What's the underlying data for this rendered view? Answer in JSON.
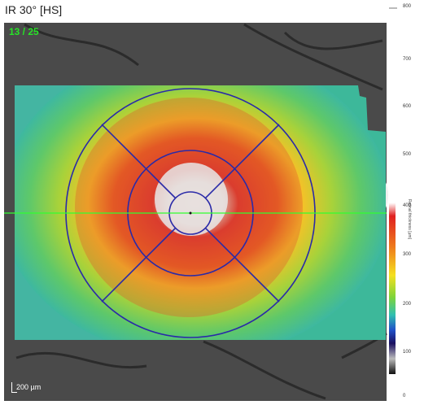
{
  "header": {
    "scan_title": "IR 30° [HS]",
    "frame_counter": "13 / 25"
  },
  "scale_bar": {
    "label": "200 µm"
  },
  "colorbar": {
    "ticks": [
      "800",
      "700",
      "600",
      "500",
      "400",
      "300",
      "200",
      "100",
      "0"
    ],
    "unit_label": "Retinal thickness [µm]",
    "colors": [
      "#f5f5f5",
      "#d8d8d8",
      "#e02020",
      "#ee6a1c",
      "#f7d020",
      "#9ad43a",
      "#30c0a0",
      "#2050c8",
      "#201060",
      "#000000"
    ]
  },
  "overlay": {
    "grid_color": "#2a2aa8",
    "scan_line_color": "#30ff30"
  },
  "icons": {
    "scale_bar": "scale-bar-icon",
    "center_marker": "fovea-center-icon"
  }
}
